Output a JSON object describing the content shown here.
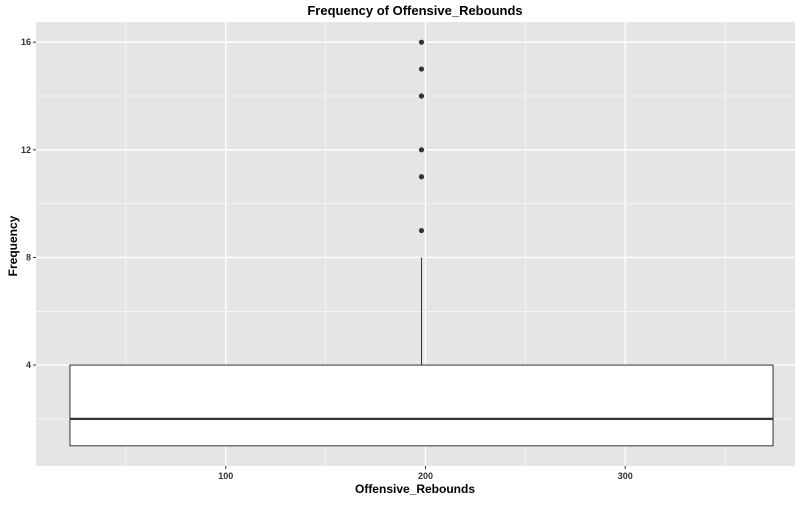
{
  "chart_data": {
    "type": "box",
    "title": "Frequency of Offensive_Rebounds",
    "xlabel": "Offensive_Rebounds",
    "ylabel": "Frequency",
    "xlim": [
      5,
      385
    ],
    "ylim": [
      0.25,
      16.75
    ],
    "x_ticks": [
      100,
      200,
      300
    ],
    "y_ticks": [
      4,
      8,
      12,
      16
    ],
    "grid": true,
    "box": {
      "x_min": 22,
      "x_max": 374,
      "center_x": 198,
      "q1": 1,
      "median": 2,
      "q3": 4,
      "whisker_low": 1,
      "whisker_high": 8,
      "outliers": [
        9,
        11,
        12,
        14,
        15,
        16
      ]
    },
    "colors": {
      "panel": "#e5e5e5",
      "grid": "#ffffff",
      "box_fill": "#ffffff",
      "box_line": "#333333",
      "outlier": "#333333"
    }
  }
}
